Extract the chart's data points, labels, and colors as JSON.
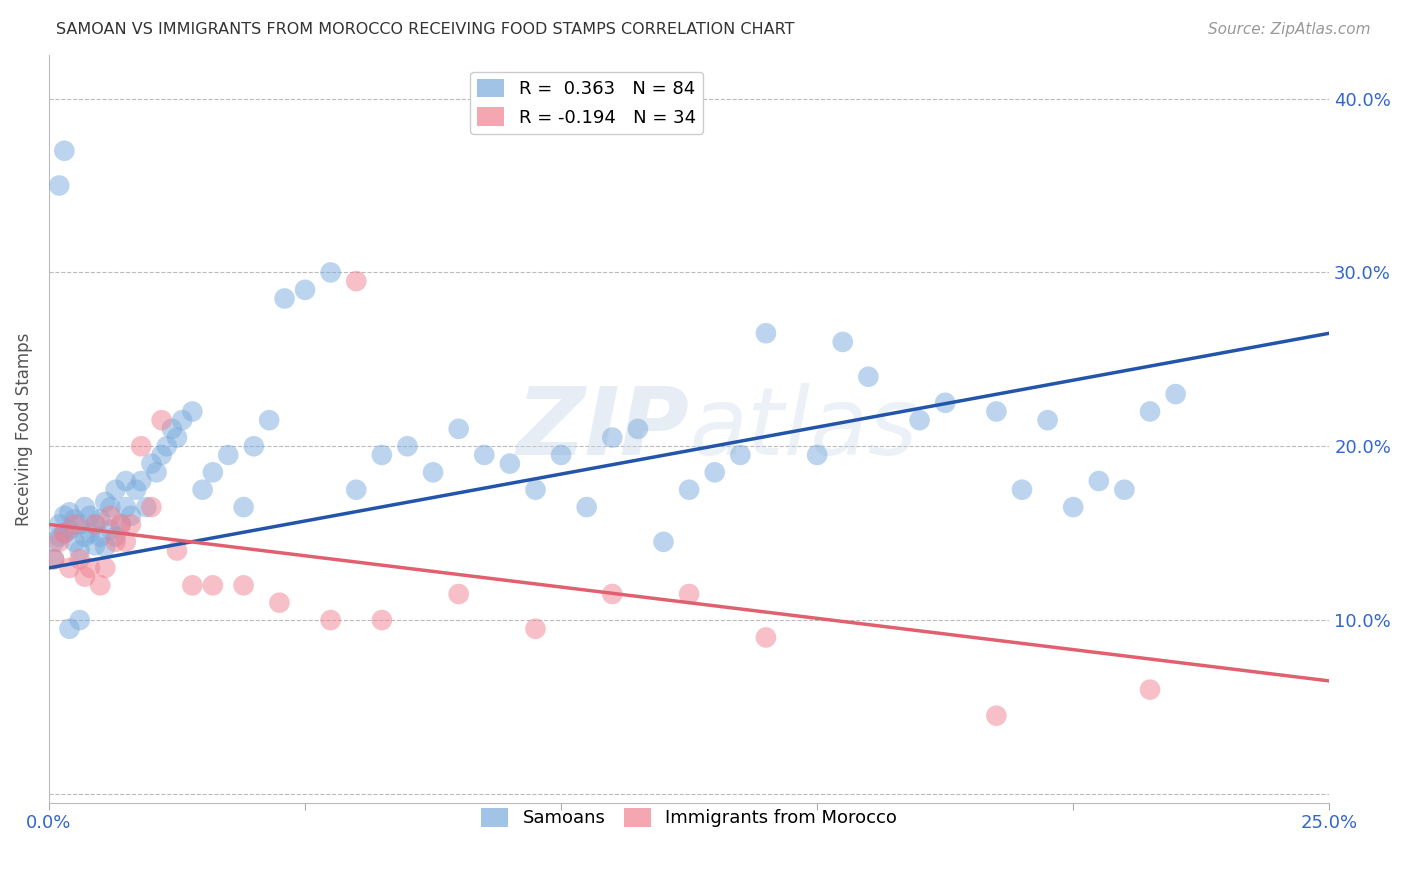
{
  "title": "SAMOAN VS IMMIGRANTS FROM MOROCCO RECEIVING FOOD STAMPS CORRELATION CHART",
  "source": "Source: ZipAtlas.com",
  "ylabel": "Receiving Food Stamps",
  "xlim": [
    0.0,
    0.25
  ],
  "ylim": [
    -0.005,
    0.425
  ],
  "x_ticks": [
    0.0,
    0.05,
    0.1,
    0.15,
    0.2,
    0.25
  ],
  "x_tick_labels": [
    "0.0%",
    "",
    "",
    "",
    "",
    "25.0%"
  ],
  "y_ticks": [
    0.0,
    0.1,
    0.2,
    0.3,
    0.4
  ],
  "y_tick_labels": [
    "",
    "10.0%",
    "20.0%",
    "30.0%",
    "40.0%"
  ],
  "background_color": "#ffffff",
  "samoans_color": "#7aabdc",
  "morocco_color": "#f08090",
  "samoans_line_color": "#2255aa",
  "morocco_line_color": "#e06070",
  "R_samoans": 0.363,
  "N_samoans": 84,
  "R_morocco": -0.194,
  "N_morocco": 34,
  "sam_line_x0": 0.0,
  "sam_line_y0": 0.13,
  "sam_line_x1": 0.25,
  "sam_line_y1": 0.265,
  "mor_line_x0": 0.0,
  "mor_line_y0": 0.155,
  "mor_line_x1": 0.25,
  "mor_line_y1": 0.065,
  "sam_x": [
    0.001,
    0.001,
    0.002,
    0.002,
    0.003,
    0.003,
    0.004,
    0.004,
    0.005,
    0.005,
    0.006,
    0.006,
    0.007,
    0.007,
    0.008,
    0.008,
    0.009,
    0.009,
    0.01,
    0.01,
    0.011,
    0.011,
    0.012,
    0.012,
    0.013,
    0.013,
    0.014,
    0.015,
    0.015,
    0.016,
    0.017,
    0.018,
    0.019,
    0.02,
    0.021,
    0.022,
    0.023,
    0.024,
    0.025,
    0.026,
    0.028,
    0.03,
    0.032,
    0.035,
    0.038,
    0.04,
    0.043,
    0.046,
    0.05,
    0.055,
    0.06,
    0.065,
    0.07,
    0.075,
    0.08,
    0.085,
    0.09,
    0.095,
    0.1,
    0.105,
    0.11,
    0.115,
    0.12,
    0.125,
    0.13,
    0.135,
    0.14,
    0.15,
    0.155,
    0.16,
    0.17,
    0.175,
    0.185,
    0.19,
    0.195,
    0.2,
    0.205,
    0.21,
    0.215,
    0.22,
    0.002,
    0.003,
    0.004,
    0.006
  ],
  "sam_y": [
    0.135,
    0.145,
    0.148,
    0.155,
    0.15,
    0.16,
    0.152,
    0.162,
    0.145,
    0.158,
    0.14,
    0.155,
    0.148,
    0.165,
    0.15,
    0.16,
    0.155,
    0.143,
    0.148,
    0.158,
    0.142,
    0.168,
    0.152,
    0.165,
    0.148,
    0.175,
    0.155,
    0.165,
    0.18,
    0.16,
    0.175,
    0.18,
    0.165,
    0.19,
    0.185,
    0.195,
    0.2,
    0.21,
    0.205,
    0.215,
    0.22,
    0.175,
    0.185,
    0.195,
    0.165,
    0.2,
    0.215,
    0.285,
    0.29,
    0.3,
    0.175,
    0.195,
    0.2,
    0.185,
    0.21,
    0.195,
    0.19,
    0.175,
    0.195,
    0.165,
    0.205,
    0.21,
    0.145,
    0.175,
    0.185,
    0.195,
    0.265,
    0.195,
    0.26,
    0.24,
    0.215,
    0.225,
    0.22,
    0.175,
    0.215,
    0.165,
    0.18,
    0.175,
    0.22,
    0.23,
    0.35,
    0.37,
    0.095,
    0.1
  ],
  "mor_x": [
    0.001,
    0.002,
    0.003,
    0.004,
    0.005,
    0.006,
    0.007,
    0.008,
    0.009,
    0.01,
    0.011,
    0.012,
    0.013,
    0.014,
    0.015,
    0.016,
    0.018,
    0.02,
    0.022,
    0.025,
    0.028,
    0.032,
    0.038,
    0.045,
    0.055,
    0.06,
    0.065,
    0.08,
    0.095,
    0.11,
    0.125,
    0.14,
    0.185,
    0.215
  ],
  "mor_y": [
    0.135,
    0.145,
    0.15,
    0.13,
    0.155,
    0.135,
    0.125,
    0.13,
    0.155,
    0.12,
    0.13,
    0.16,
    0.145,
    0.155,
    0.145,
    0.155,
    0.2,
    0.165,
    0.215,
    0.14,
    0.12,
    0.12,
    0.12,
    0.11,
    0.1,
    0.295,
    0.1,
    0.115,
    0.095,
    0.115,
    0.115,
    0.09,
    0.045,
    0.06
  ]
}
